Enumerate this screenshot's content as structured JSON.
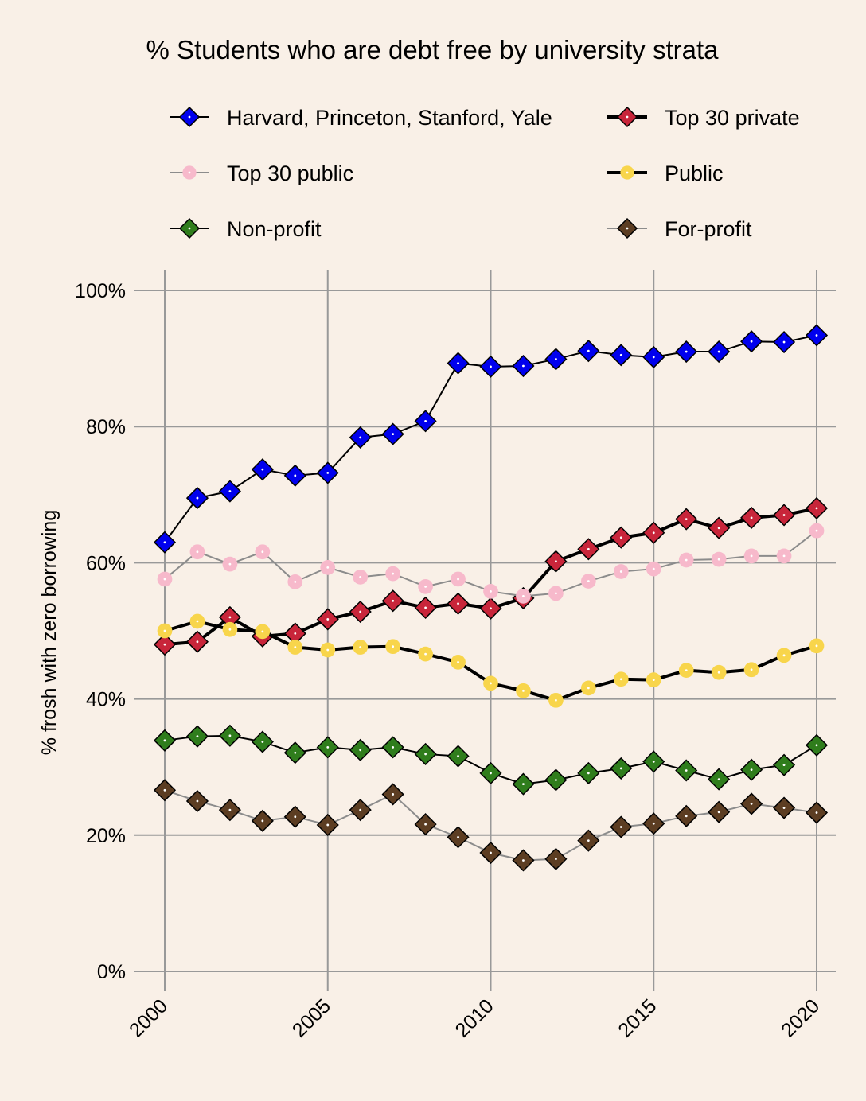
{
  "chart_data": {
    "type": "line",
    "title": "% Students who are debt free by university strata",
    "xlabel": "",
    "ylabel": "% frosh with zero borrowing",
    "x": [
      2000,
      2001,
      2002,
      2003,
      2004,
      2005,
      2006,
      2007,
      2008,
      2009,
      2010,
      2011,
      2012,
      2013,
      2014,
      2015,
      2016,
      2017,
      2018,
      2019,
      2020
    ],
    "xlim": [
      2000,
      2020
    ],
    "ylim": [
      0,
      100
    ],
    "xticks": [
      "2000",
      "2005",
      "2010",
      "2015",
      "2020"
    ],
    "yticks": [
      "0%",
      "20%",
      "40%",
      "60%",
      "80%",
      "100%"
    ],
    "grid": true,
    "legend_position": "top",
    "series": [
      {
        "name": "Harvard, Princeton, Stanford, Yale",
        "color": "#0000ee",
        "marker": "diamond",
        "line_color": "#000000",
        "line_width": "thin",
        "values": [
          63,
          69.5,
          70.5,
          73.7,
          72.8,
          73.2,
          78.4,
          78.9,
          80.8,
          89.3,
          88.8,
          88.9,
          89.9,
          91.1,
          90.5,
          90.2,
          91,
          91,
          92.5,
          92.4,
          93.4
        ]
      },
      {
        "name": "Top 30 private",
        "color": "#c8253a",
        "marker": "diamond",
        "line_color": "#000000",
        "line_width": "thick",
        "values": [
          48,
          48.4,
          52,
          49.2,
          49.6,
          51.7,
          52.8,
          54.4,
          53.4,
          54,
          53.3,
          54.8,
          60.2,
          62,
          63.7,
          64.4,
          66.4,
          65.1,
          66.6,
          67,
          68
        ]
      },
      {
        "name": "Top 30 public",
        "color": "#f7b9cb",
        "marker": "circle",
        "line_color": "#8c8c8c",
        "line_width": "thin",
        "values": [
          57.6,
          61.6,
          59.8,
          61.6,
          57.2,
          59.3,
          57.9,
          58.4,
          56.5,
          57.6,
          55.8,
          55.1,
          55.5,
          57.3,
          58.7,
          59.1,
          60.4,
          60.5,
          61,
          61,
          64.7
        ]
      },
      {
        "name": "Public",
        "color": "#f8d54b",
        "marker": "circle",
        "line_color": "#000000",
        "line_width": "thick",
        "values": [
          50,
          51.4,
          50.2,
          49.9,
          47.6,
          47.2,
          47.6,
          47.7,
          46.6,
          45.4,
          42.3,
          41.2,
          39.8,
          41.6,
          42.9,
          42.8,
          44.2,
          43.9,
          44.3,
          46.4,
          47.8
        ]
      },
      {
        "name": "Non-profit",
        "color": "#2f7d1c",
        "marker": "diamond",
        "line_color": "#000000",
        "line_width": "thin",
        "values": [
          33.9,
          34.5,
          34.6,
          33.7,
          32.1,
          32.9,
          32.5,
          32.9,
          31.9,
          31.6,
          29.1,
          27.5,
          28.1,
          29.1,
          29.8,
          30.8,
          29.5,
          28.2,
          29.6,
          30.3,
          33.2
        ]
      },
      {
        "name": "For-profit",
        "color": "#5c3d22",
        "marker": "diamond",
        "line_color": "#8c8c8c",
        "line_width": "thin",
        "values": [
          26.6,
          25,
          23.7,
          22.1,
          22.7,
          21.5,
          23.7,
          26,
          21.6,
          19.7,
          17.4,
          16.3,
          16.5,
          19.2,
          21.2,
          21.7,
          22.8,
          23.4,
          24.6,
          24,
          23.3
        ]
      }
    ]
  }
}
